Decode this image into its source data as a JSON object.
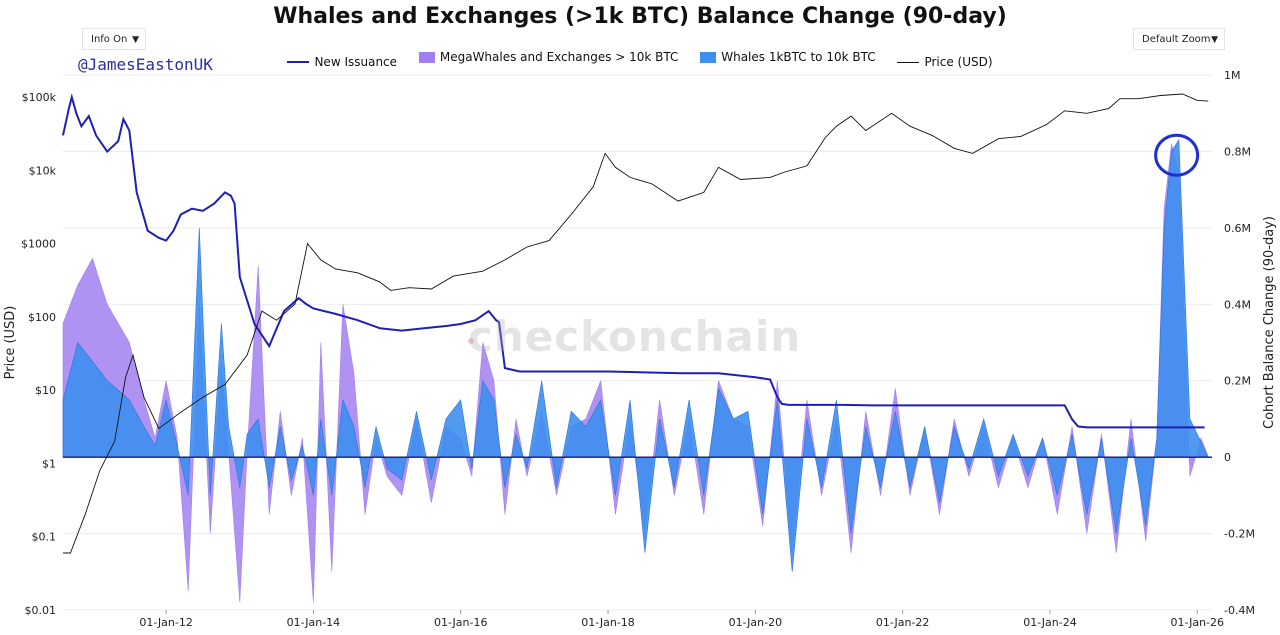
{
  "header": {
    "title": "Whales and Exchanges (>1k BTC) Balance Change (90-day)",
    "info_select": "Info On",
    "zoom_select": "Default Zoom",
    "handle": "@JamesEastonUK",
    "watermark": "checkonchain"
  },
  "colors": {
    "new_issuance": "#1f1fb4",
    "megawhales": "#a27ff0",
    "whales": "#3d8fef",
    "price": "#111111",
    "zero_line": "#1a1a6e",
    "highlight_circle": "#1f2fd6"
  },
  "chart_data": {
    "type": "area",
    "title": "Whales and Exchanges (>1k BTC) Balance Change (90-day)",
    "xlabel": "",
    "ylabel_left": "Price (USD)",
    "ylabel_right": "Cohort Balance Change (90-day)",
    "x_range": [
      2010.6,
      2026.2
    ],
    "y_left_scale": "log",
    "y_left_range": [
      0.01,
      200000
    ],
    "y_left_ticks": [
      "$0.01",
      "$0.1",
      "$1",
      "$10",
      "$100",
      "$1000",
      "$10k",
      "$100k"
    ],
    "y_right_range": [
      -400000,
      1000000
    ],
    "y_right_ticks": [
      "-0.4M",
      "-0.2M",
      "0",
      "0.2M",
      "0.4M",
      "0.6M",
      "0.8M",
      "1M"
    ],
    "x_ticks": [
      "01-Jan-12",
      "01-Jan-14",
      "01-Jan-16",
      "01-Jan-18",
      "01-Jan-20",
      "01-Jan-22",
      "01-Jan-24",
      "01-Jan-26"
    ],
    "legend_position": "top-center",
    "annotation": "circle around late-2025 peak of ~0.83M",
    "series": [
      {
        "name": "New Issuance",
        "axis": "left",
        "x": [
          2010.6,
          2010.68,
          2010.72,
          2010.78,
          2010.85,
          2010.95,
          2011.05,
          2011.2,
          2011.35,
          2011.42,
          2011.5,
          2011.6,
          2011.75,
          2011.9,
          2012.0,
          2012.1,
          2012.2,
          2012.35,
          2012.5,
          2012.65,
          2012.8,
          2012.88,
          2012.93,
          2013.0,
          2013.2,
          2013.4,
          2013.6,
          2013.8,
          2013.9,
          2014.0,
          2014.3,
          2014.6,
          2014.9,
          2015.2,
          2015.5,
          2015.8,
          2016.0,
          2016.2,
          2016.38,
          2016.48,
          2016.52,
          2016.6,
          2016.8,
          2017.2,
          2017.6,
          2018.0,
          2018.5,
          2019.0,
          2019.5,
          2020.0,
          2020.2,
          2020.3,
          2020.36,
          2020.45,
          2020.8,
          2021.2,
          2021.6,
          2022.0,
          2022.5,
          2023.0,
          2023.5,
          2024.0,
          2024.2,
          2024.3,
          2024.38,
          2024.5,
          2025.0,
          2025.5,
          2026.0,
          2026.1
        ],
        "values": [
          30000,
          70000,
          100000,
          60000,
          40000,
          55000,
          30000,
          18000,
          25000,
          50000,
          35000,
          5000,
          1500,
          1200,
          1100,
          1500,
          2500,
          3000,
          2800,
          3500,
          5000,
          4500,
          3500,
          350,
          80,
          40,
          120,
          180,
          150,
          130,
          110,
          90,
          70,
          65,
          70,
          75,
          80,
          90,
          120,
          90,
          85,
          20,
          18,
          18,
          18,
          18,
          17.5,
          17,
          17,
          15,
          14,
          8,
          6.5,
          6.3,
          6.3,
          6.3,
          6.2,
          6.2,
          6.2,
          6.2,
          6.2,
          6.2,
          6.2,
          4,
          3.2,
          3.1,
          3.1,
          3.1,
          3.1,
          3.1
        ]
      },
      {
        "name": "MegaWhales and Exchanges > 10k BTC",
        "axis": "right",
        "x": [
          2010.6,
          2010.8,
          2011.0,
          2011.2,
          2011.5,
          2011.7,
          2011.85,
          2012.0,
          2012.15,
          2012.3,
          2012.45,
          2012.6,
          2012.75,
          2012.85,
          2013.0,
          2013.1,
          2013.25,
          2013.4,
          2013.55,
          2013.7,
          2013.85,
          2014.0,
          2014.1,
          2014.25,
          2014.4,
          2014.55,
          2014.7,
          2014.85,
          2015.0,
          2015.2,
          2015.4,
          2015.6,
          2015.8,
          2016.0,
          2016.15,
          2016.3,
          2016.45,
          2016.6,
          2016.75,
          2016.9,
          2017.1,
          2017.3,
          2017.5,
          2017.7,
          2017.9,
          2018.1,
          2018.3,
          2018.5,
          2018.7,
          2018.9,
          2019.1,
          2019.3,
          2019.5,
          2019.7,
          2019.9,
          2020.1,
          2020.3,
          2020.5,
          2020.7,
          2020.9,
          2021.1,
          2021.3,
          2021.5,
          2021.7,
          2021.9,
          2022.1,
          2022.3,
          2022.5,
          2022.7,
          2022.9,
          2023.1,
          2023.3,
          2023.5,
          2023.7,
          2023.9,
          2024.1,
          2024.3,
          2024.5,
          2024.7,
          2024.9,
          2025.1,
          2025.3,
          2025.45,
          2025.55,
          2025.65,
          2025.75,
          2025.9,
          2026.05,
          2026.15
        ],
        "values": [
          350000,
          450000,
          520000,
          400000,
          300000,
          150000,
          50000,
          200000,
          50000,
          -350000,
          400000,
          -200000,
          250000,
          10000,
          -380000,
          10000,
          500000,
          -150000,
          120000,
          -100000,
          50000,
          -380000,
          300000,
          -300000,
          400000,
          220000,
          -150000,
          50000,
          -50000,
          -100000,
          100000,
          -120000,
          80000,
          50000,
          -50000,
          300000,
          200000,
          -150000,
          100000,
          -50000,
          120000,
          -100000,
          80000,
          100000,
          200000,
          -150000,
          100000,
          -200000,
          150000,
          -100000,
          100000,
          -150000,
          200000,
          100000,
          80000,
          -180000,
          200000,
          -250000,
          150000,
          -100000,
          100000,
          -250000,
          120000,
          -100000,
          180000,
          -100000,
          80000,
          -150000,
          100000,
          -50000,
          80000,
          -80000,
          50000,
          -80000,
          50000,
          -150000,
          80000,
          -200000,
          60000,
          -250000,
          100000,
          -220000,
          50000,
          650000,
          820000,
          750000,
          -50000,
          50000,
          0
        ]
      },
      {
        "name": "Whales 1kBTC to 10k BTC",
        "axis": "right",
        "x": [
          2010.6,
          2010.8,
          2011.0,
          2011.2,
          2011.5,
          2011.7,
          2011.85,
          2012.0,
          2012.15,
          2012.3,
          2012.45,
          2012.6,
          2012.75,
          2012.85,
          2013.0,
          2013.1,
          2013.25,
          2013.4,
          2013.55,
          2013.7,
          2013.85,
          2014.0,
          2014.1,
          2014.25,
          2014.4,
          2014.55,
          2014.7,
          2014.85,
          2015.0,
          2015.2,
          2015.4,
          2015.6,
          2015.8,
          2016.0,
          2016.15,
          2016.3,
          2016.45,
          2016.6,
          2016.75,
          2016.9,
          2017.1,
          2017.3,
          2017.5,
          2017.7,
          2017.9,
          2018.1,
          2018.3,
          2018.5,
          2018.7,
          2018.9,
          2019.1,
          2019.3,
          2019.5,
          2019.7,
          2019.9,
          2020.1,
          2020.3,
          2020.5,
          2020.7,
          2020.9,
          2021.1,
          2021.3,
          2021.5,
          2021.7,
          2021.9,
          2022.1,
          2022.3,
          2022.5,
          2022.7,
          2022.9,
          2023.1,
          2023.3,
          2023.5,
          2023.7,
          2023.9,
          2024.1,
          2024.3,
          2024.5,
          2024.7,
          2024.9,
          2025.1,
          2025.3,
          2025.45,
          2025.55,
          2025.65,
          2025.75,
          2025.9,
          2026.05,
          2026.15
        ],
        "values": [
          150000,
          300000,
          250000,
          200000,
          150000,
          80000,
          30000,
          150000,
          30000,
          -100000,
          600000,
          -100000,
          350000,
          80000,
          -80000,
          60000,
          100000,
          -80000,
          80000,
          -60000,
          30000,
          -100000,
          100000,
          -100000,
          150000,
          80000,
          -80000,
          80000,
          -30000,
          -60000,
          120000,
          -60000,
          100000,
          150000,
          -30000,
          200000,
          150000,
          -80000,
          60000,
          -30000,
          200000,
          -80000,
          120000,
          80000,
          150000,
          -100000,
          150000,
          -250000,
          100000,
          -80000,
          150000,
          -100000,
          180000,
          100000,
          120000,
          -150000,
          150000,
          -300000,
          100000,
          -80000,
          150000,
          -200000,
          80000,
          -80000,
          120000,
          -80000,
          80000,
          -120000,
          80000,
          -30000,
          100000,
          -50000,
          60000,
          -50000,
          50000,
          -100000,
          60000,
          -150000,
          50000,
          -200000,
          50000,
          -180000,
          50000,
          600000,
          800000,
          830000,
          100000,
          40000,
          0
        ]
      },
      {
        "name": "Price (USD)",
        "axis": "left",
        "x": [
          2010.6,
          2010.7,
          2010.9,
          2011.1,
          2011.3,
          2011.45,
          2011.55,
          2011.7,
          2011.9,
          2012.2,
          2012.5,
          2012.8,
          2013.1,
          2013.3,
          2013.5,
          2013.75,
          2013.92,
          2014.1,
          2014.3,
          2014.6,
          2014.9,
          2015.05,
          2015.3,
          2015.6,
          2015.9,
          2016.3,
          2016.6,
          2016.9,
          2017.2,
          2017.5,
          2017.8,
          2017.96,
          2018.1,
          2018.3,
          2018.6,
          2018.95,
          2019.3,
          2019.5,
          2019.8,
          2020.2,
          2020.4,
          2020.7,
          2020.95,
          2021.1,
          2021.3,
          2021.5,
          2021.85,
          2022.1,
          2022.4,
          2022.7,
          2022.95,
          2023.3,
          2023.6,
          2023.95,
          2024.2,
          2024.5,
          2024.8,
          2024.95,
          2025.2,
          2025.5,
          2025.8,
          2026.0,
          2026.15
        ],
        "values": [
          0.06,
          0.06,
          0.2,
          0.8,
          2,
          15,
          30,
          8,
          3,
          5,
          8,
          12,
          30,
          120,
          90,
          150,
          1000,
          600,
          450,
          400,
          300,
          230,
          250,
          240,
          360,
          420,
          600,
          900,
          1100,
          2500,
          6000,
          17000,
          11000,
          8000,
          6500,
          3800,
          5000,
          11000,
          7500,
          8000,
          9500,
          11500,
          28000,
          40000,
          55000,
          35000,
          60000,
          40000,
          30000,
          20000,
          17000,
          27000,
          29000,
          42000,
          65000,
          60000,
          70000,
          95000,
          95000,
          105000,
          110000,
          90000,
          88000
        ]
      }
    ]
  }
}
